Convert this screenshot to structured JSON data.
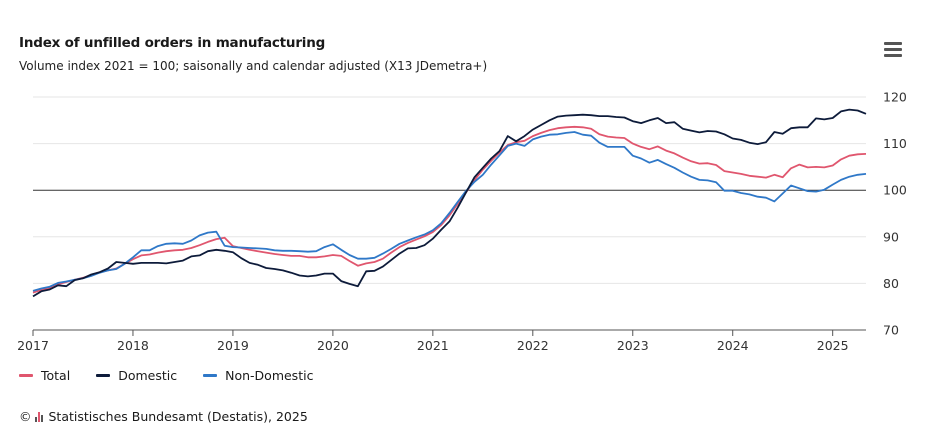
{
  "header": {
    "title": "Index of unfilled orders in manufacturing",
    "subtitle": "Volume index 2021 = 100; saisonally and calendar adjusted (X13 JDemetra+)"
  },
  "menu_icon": "hamburger-menu-icon",
  "footer": {
    "copyright_symbol": "©",
    "text": "Statistisches Bundesamt (Destatis), 2025",
    "logo_icon": "destatis-logo-icon"
  },
  "colors": {
    "total": "#e0566e",
    "domestic": "#0d1b3a",
    "non_domestic": "#2f78c8",
    "grid": "#e6e6e6",
    "reference_line": "#333333"
  },
  "chart_data": {
    "type": "line",
    "title": "Index of unfilled orders in manufacturing",
    "subtitle": "Volume index 2021 = 100; saisonally and calendar adjusted (X13 JDemetra+)",
    "x_ticks": [
      "2017",
      "2018",
      "2019",
      "2020",
      "2021",
      "2022",
      "2023",
      "2024",
      "2025"
    ],
    "y_ticks": [
      70,
      80,
      90,
      100,
      110,
      120
    ],
    "ylim": [
      70,
      122
    ],
    "xlim": [
      "2017-01",
      "2025-05"
    ],
    "reference_line": 100,
    "grid": "horizontal",
    "legend_position": "bottom-left",
    "x": [
      "2017-01",
      "2017-02",
      "2017-03",
      "2017-04",
      "2017-05",
      "2017-06",
      "2017-07",
      "2017-08",
      "2017-09",
      "2017-10",
      "2017-11",
      "2017-12",
      "2018-01",
      "2018-02",
      "2018-03",
      "2018-04",
      "2018-05",
      "2018-06",
      "2018-07",
      "2018-08",
      "2018-09",
      "2018-10",
      "2018-11",
      "2018-12",
      "2019-01",
      "2019-02",
      "2019-03",
      "2019-04",
      "2019-05",
      "2019-06",
      "2019-07",
      "2019-08",
      "2019-09",
      "2019-10",
      "2019-11",
      "2019-12",
      "2020-01",
      "2020-02",
      "2020-03",
      "2020-04",
      "2020-05",
      "2020-06",
      "2020-07",
      "2020-08",
      "2020-09",
      "2020-10",
      "2020-11",
      "2020-12",
      "2021-01",
      "2021-02",
      "2021-03",
      "2021-04",
      "2021-05",
      "2021-06",
      "2021-07",
      "2021-08",
      "2021-09",
      "2021-10",
      "2021-11",
      "2021-12",
      "2022-01",
      "2022-02",
      "2022-03",
      "2022-04",
      "2022-05",
      "2022-06",
      "2022-07",
      "2022-08",
      "2022-09",
      "2022-10",
      "2022-11",
      "2022-12",
      "2023-01",
      "2023-02",
      "2023-03",
      "2023-04",
      "2023-05",
      "2023-06",
      "2023-07",
      "2023-08",
      "2023-09",
      "2023-10",
      "2023-11",
      "2023-12",
      "2024-01",
      "2024-02",
      "2024-03",
      "2024-04",
      "2024-05",
      "2024-06",
      "2024-07",
      "2024-08",
      "2024-09",
      "2024-10",
      "2024-11",
      "2024-12",
      "2025-01",
      "2025-02",
      "2025-03",
      "2025-04",
      "2025-05"
    ],
    "series": [
      {
        "name": "Total",
        "values": [
          78.0,
          78.6,
          79.0,
          79.8,
          80.3,
          80.8,
          81.2,
          81.8,
          82.4,
          82.8,
          83.2,
          84.2,
          85.2,
          86.0,
          86.2,
          86.6,
          86.9,
          87.1,
          87.2,
          87.6,
          88.2,
          88.9,
          89.5,
          89.8,
          88.0,
          87.6,
          87.2,
          86.9,
          86.6,
          86.3,
          86.1,
          85.9,
          85.9,
          85.6,
          85.6,
          85.8,
          86.1,
          85.9,
          84.8,
          83.8,
          84.3,
          84.6,
          85.3,
          86.6,
          87.8,
          88.7,
          89.4,
          90.1,
          91.0,
          92.5,
          94.6,
          97.1,
          99.6,
          102.2,
          104.4,
          106.3,
          108.1,
          109.7,
          110.3,
          110.6,
          111.6,
          112.3,
          112.9,
          113.3,
          113.5,
          113.6,
          113.5,
          113.2,
          112.0,
          111.5,
          111.3,
          111.2,
          110.0,
          109.3,
          108.8,
          109.4,
          108.5,
          107.9,
          107.0,
          106.2,
          105.7,
          105.8,
          105.4,
          104.1,
          103.8,
          103.5,
          103.1,
          102.9,
          102.7,
          103.3,
          102.8,
          104.7,
          105.5,
          104.9,
          105.0,
          104.9,
          105.3,
          106.6,
          107.4,
          107.7,
          107.8
        ]
      },
      {
        "name": "Domestic",
        "values": [
          77.2,
          78.3,
          78.7,
          79.6,
          79.4,
          80.7,
          81.1,
          81.9,
          82.4,
          83.2,
          84.6,
          84.4,
          84.2,
          84.4,
          84.4,
          84.4,
          84.3,
          84.6,
          84.9,
          85.8,
          86.0,
          86.9,
          87.2,
          87.0,
          86.7,
          85.4,
          84.4,
          84.0,
          83.3,
          83.1,
          82.8,
          82.3,
          81.7,
          81.5,
          81.7,
          82.1,
          82.1,
          80.5,
          79.9,
          79.4,
          82.6,
          82.7,
          83.6,
          85.0,
          86.4,
          87.5,
          87.6,
          88.2,
          89.6,
          91.5,
          93.3,
          96.3,
          99.6,
          102.8,
          104.8,
          106.8,
          108.4,
          111.6,
          110.5,
          111.6,
          113.0,
          114.0,
          115.0,
          115.8,
          116.0,
          116.1,
          116.2,
          116.1,
          115.9,
          115.9,
          115.7,
          115.6,
          114.8,
          114.4,
          115.0,
          115.5,
          114.4,
          114.6,
          113.2,
          112.8,
          112.4,
          112.7,
          112.6,
          112.0,
          111.1,
          110.8,
          110.2,
          109.9,
          110.3,
          112.5,
          112.1,
          113.3,
          113.5,
          113.5,
          115.4,
          115.2,
          115.5,
          116.9,
          117.3,
          117.1,
          116.4
        ]
      },
      {
        "name": "Non-Domestic",
        "values": [
          78.4,
          78.9,
          79.3,
          80.1,
          80.4,
          80.8,
          81.1,
          81.6,
          82.3,
          82.8,
          83.1,
          84.2,
          85.6,
          87.1,
          87.1,
          88.0,
          88.5,
          88.6,
          88.5,
          89.2,
          90.3,
          90.9,
          91.1,
          88.1,
          87.8,
          87.7,
          87.6,
          87.5,
          87.4,
          87.1,
          87.0,
          87.0,
          86.9,
          86.8,
          86.9,
          87.8,
          88.4,
          87.2,
          86.1,
          85.3,
          85.3,
          85.5,
          86.4,
          87.4,
          88.5,
          89.2,
          89.9,
          90.5,
          91.4,
          92.9,
          95.1,
          97.5,
          99.9,
          101.8,
          103.3,
          105.5,
          107.5,
          109.5,
          110.0,
          109.5,
          110.9,
          111.5,
          111.9,
          112.0,
          112.3,
          112.5,
          111.9,
          111.7,
          110.2,
          109.3,
          109.3,
          109.3,
          107.4,
          106.8,
          105.9,
          106.5,
          105.6,
          104.8,
          103.8,
          102.9,
          102.2,
          102.1,
          101.7,
          99.9,
          99.9,
          99.4,
          99.1,
          98.6,
          98.4,
          97.6,
          99.3,
          101.0,
          100.4,
          99.8,
          99.7,
          100.1,
          101.2,
          102.2,
          102.9,
          103.3,
          103.5
        ]
      }
    ]
  }
}
